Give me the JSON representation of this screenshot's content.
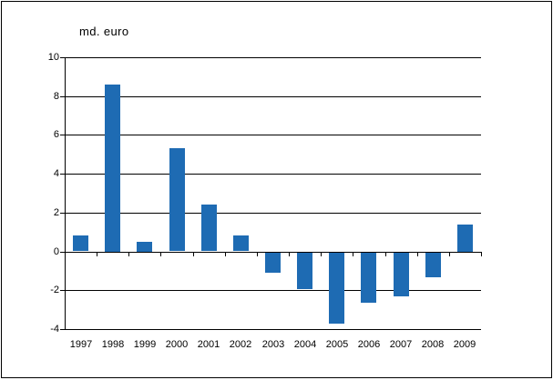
{
  "window": {
    "background": "#ffffff",
    "border_color": "#000000"
  },
  "chart_data": {
    "type": "bar",
    "title": "md. euro",
    "xlabel": "",
    "ylabel": "",
    "categories": [
      "1997",
      "1998",
      "1999",
      "2000",
      "2001",
      "2002",
      "2003",
      "2004",
      "2005",
      "2006",
      "2007",
      "2008",
      "2009"
    ],
    "values": [
      0.8,
      8.6,
      0.5,
      5.3,
      2.4,
      0.8,
      -1.1,
      -1.9,
      -3.7,
      -2.6,
      -2.3,
      -1.3,
      1.4
    ],
    "ylim": [
      -4,
      10
    ],
    "yticks": [
      10,
      8,
      6,
      4,
      2,
      0,
      -2,
      -4
    ],
    "grid": true,
    "legend": false,
    "bar_color": "#1e6bb3",
    "axis_color": "#000000",
    "text_color": "#000000"
  }
}
